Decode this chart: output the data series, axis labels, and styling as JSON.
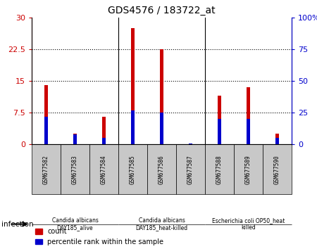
{
  "title": "GDS4576 / 183722_at",
  "samples": [
    "GSM677582",
    "GSM677583",
    "GSM677584",
    "GSM677585",
    "GSM677586",
    "GSM677587",
    "GSM677588",
    "GSM677589",
    "GSM677590"
  ],
  "count_values": [
    14.0,
    2.5,
    6.5,
    27.5,
    22.5,
    0.2,
    11.5,
    13.5,
    2.5
  ],
  "percentile_values": [
    22,
    8,
    5,
    27,
    25,
    1,
    20,
    20,
    5
  ],
  "ylim_left": [
    0,
    30
  ],
  "ylim_right": [
    0,
    100
  ],
  "yticks_left": [
    0,
    7.5,
    15,
    22.5,
    30
  ],
  "yticks_right": [
    0,
    25,
    50,
    75,
    100
  ],
  "groups": [
    {
      "label": "Candida albicans\nDAY185_alive",
      "start": 0,
      "end": 3,
      "color": "#90EE90"
    },
    {
      "label": "Candida albicans\nDAY185_heat-killed",
      "start": 3,
      "end": 6,
      "color": "#90EE90"
    },
    {
      "label": "Escherichia coli OP50_heat\nkilled",
      "start": 6,
      "end": 9,
      "color": "#90EE90"
    }
  ],
  "bar_width": 0.12,
  "count_color": "#CC0000",
  "percentile_color": "#0000CC",
  "tick_bg_color": "#C8C8C8",
  "legend_labels": [
    "count",
    "percentile rank within the sample"
  ],
  "infection_label": "infection",
  "ylabel_left_color": "#CC0000",
  "ylabel_right_color": "#0000CC",
  "group_sep": [
    2.5,
    5.5
  ]
}
